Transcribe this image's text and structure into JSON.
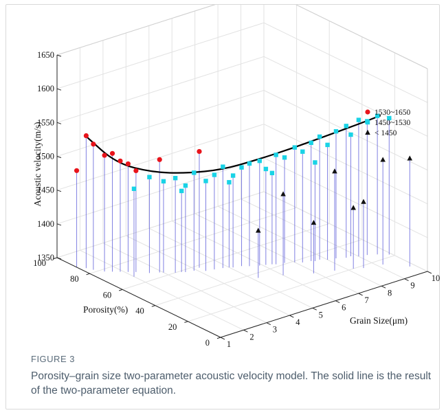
{
  "caption": {
    "label": "FIGURE 3",
    "text": "Porosity–grain size two-parameter acoustic velocity model. The solid line is the result of the two-parameter equation."
  },
  "chart_data": {
    "type": "scatter3d",
    "xlabel": "Grain Size(μm)",
    "ylabel": "Porosity(%)",
    "zlabel": "Acoustic velocity(m/s)",
    "x_ticks": [
      "1",
      "2",
      "3",
      "4",
      "5",
      "6",
      "7",
      "8",
      "9",
      "10"
    ],
    "y_ticks": [
      "0",
      "20",
      "40",
      "60",
      "80",
      "100"
    ],
    "z_ticks": [
      "1350",
      "1400",
      "1450",
      "1500",
      "1550",
      "1600",
      "1650"
    ],
    "xlim": [
      1,
      10
    ],
    "ylim": [
      0,
      100
    ],
    "zlim": [
      1350,
      1650
    ],
    "grid": true,
    "legend_position": "top-right",
    "colors": {
      "high": "#e8141b",
      "mid": "#19d3e6",
      "low": "#111111",
      "stem": "#5656d8",
      "curve": "#000000"
    },
    "series": [
      {
        "name": "1530~1650",
        "marker": "circle",
        "points": [
          [
            1.2,
            85,
            1546
          ],
          [
            1.3,
            82,
            1536
          ],
          [
            1.5,
            78,
            1522
          ],
          [
            1.7,
            76,
            1525
          ],
          [
            1.9,
            74,
            1514
          ],
          [
            2.1,
            72,
            1510
          ],
          [
            2.3,
            70,
            1500
          ],
          [
            2.9,
            64,
            1517
          ],
          [
            1.0,
            88,
            1493
          ],
          [
            4.2,
            58,
            1522
          ]
        ]
      },
      {
        "name": "1450~1530",
        "marker": "square",
        "points": [
          [
            2.0,
            67,
            1480
          ],
          [
            2.6,
            66,
            1492
          ],
          [
            3.0,
            63,
            1485
          ],
          [
            3.3,
            60,
            1490
          ],
          [
            3.6,
            58,
            1478
          ],
          [
            3.9,
            57,
            1495
          ],
          [
            4.2,
            54,
            1483
          ],
          [
            4.5,
            53,
            1490
          ],
          [
            4.8,
            52,
            1500
          ],
          [
            5.1,
            50,
            1486
          ],
          [
            5.4,
            49,
            1496
          ],
          [
            5.6,
            47,
            1502
          ],
          [
            5.9,
            45,
            1505
          ],
          [
            6.1,
            44,
            1492
          ],
          [
            6.4,
            42,
            1512
          ],
          [
            6.7,
            41,
            1506
          ],
          [
            7.0,
            39,
            1520
          ],
          [
            7.2,
            37,
            1514
          ],
          [
            7.5,
            36,
            1525
          ],
          [
            7.8,
            35,
            1532
          ],
          [
            8.0,
            33,
            1520
          ],
          [
            8.3,
            32,
            1538
          ],
          [
            8.6,
            30,
            1545
          ],
          [
            8.8,
            30,
            1530
          ],
          [
            9.0,
            28,
            1552
          ],
          [
            9.3,
            27,
            1548
          ],
          [
            9.6,
            25,
            1555
          ],
          [
            9.9,
            22,
            1552
          ],
          [
            3.5,
            59,
            1470
          ],
          [
            5.0,
            51,
            1476
          ],
          [
            6.3,
            43,
            1485
          ],
          [
            7.6,
            35,
            1496
          ]
        ]
      },
      {
        "name": "< 1450",
        "marker": "triangle",
        "points": [
          [
            5.2,
            36,
            1420
          ],
          [
            6.0,
            32,
            1470
          ],
          [
            6.9,
            26,
            1425
          ],
          [
            7.6,
            23,
            1497
          ],
          [
            8.2,
            20,
            1440
          ],
          [
            8.5,
            18,
            1448
          ],
          [
            9.2,
            16,
            1505
          ],
          [
            9.8,
            8,
            1510
          ]
        ]
      }
    ],
    "curve": {
      "name": "two-parameter equation",
      "points": [
        [
          1.2,
          85,
          1545
        ],
        [
          2.0,
          78,
          1505
        ],
        [
          3.0,
          70,
          1490
        ],
        [
          4.0,
          63,
          1486
        ],
        [
          5.0,
          55,
          1490
        ],
        [
          6.0,
          48,
          1502
        ],
        [
          7.0,
          41,
          1516
        ],
        [
          8.0,
          34,
          1532
        ],
        [
          9.0,
          27,
          1548
        ],
        [
          9.6,
          23,
          1558
        ]
      ]
    }
  }
}
